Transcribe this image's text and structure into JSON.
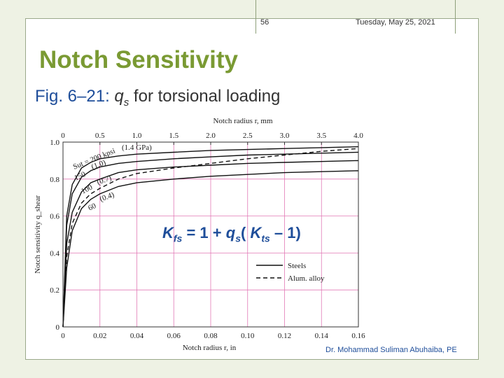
{
  "header": {
    "slide_number": "56",
    "date": "Tuesday, May 25, 2021"
  },
  "title": "Notch Sensitivity",
  "subtitle": {
    "fig": "Fig. 6–21:",
    "q": "q",
    "q_sub": "s",
    "rest": " for torsional loading"
  },
  "formula": {
    "k": "K",
    "k_sub": "fs",
    "eq": " = 1 + ",
    "q": "q",
    "q_sub": "s",
    "open": "( ",
    "k2": "K",
    "k2_sub": "ts",
    "close": " – 1)"
  },
  "author": "Dr. Mohammad Suliman Abuhaiba, PE",
  "chart_data": {
    "type": "line",
    "title": "",
    "xlabel": "Notch radius r, in",
    "x2label": "Notch radius r, mm",
    "ylabel": "Notch sensitivity q_shear",
    "xlim": [
      0,
      0.16
    ],
    "x2lim": [
      0,
      4.0
    ],
    "ylim": [
      0,
      1.0
    ],
    "x_ticks": [
      "0",
      "0.02",
      "0.04",
      "0.06",
      "0.08",
      "0.10",
      "0.12",
      "0.14",
      "0.16"
    ],
    "x2_ticks": [
      "0",
      "0.5",
      "1.0",
      "1.5",
      "2.0",
      "2.5",
      "3.0",
      "3.5",
      "4.0"
    ],
    "y_ticks": [
      "0",
      "0.2",
      "0.4",
      "0.6",
      "0.8",
      "1.0"
    ],
    "grid": true,
    "legend": {
      "position": "bottom-right",
      "entries": [
        {
          "label": "Steels",
          "style": "solid"
        },
        {
          "label": "Alum. alloy",
          "style": "dashed"
        }
      ]
    },
    "curve_labels": [
      "Sut = 200 kpsi",
      "(1.4 GPa)",
      "150",
      "(1.0)",
      "100",
      "(0.7)",
      "60",
      "(0.4)"
    ],
    "series": [
      {
        "style": "solid",
        "x": [
          0,
          0.002,
          0.005,
          0.01,
          0.015,
          0.02,
          0.03,
          0.04,
          0.06,
          0.08,
          0.1,
          0.12,
          0.14,
          0.16
        ],
        "y": [
          0,
          0.6,
          0.77,
          0.86,
          0.89,
          0.91,
          0.925,
          0.935,
          0.945,
          0.955,
          0.96,
          0.965,
          0.97,
          0.975
        ]
      },
      {
        "style": "solid",
        "x": [
          0,
          0.002,
          0.005,
          0.01,
          0.015,
          0.02,
          0.03,
          0.04,
          0.06,
          0.08,
          0.1,
          0.12,
          0.14,
          0.16
        ],
        "y": [
          0,
          0.55,
          0.72,
          0.81,
          0.845,
          0.865,
          0.885,
          0.895,
          0.91,
          0.92,
          0.93,
          0.935,
          0.94,
          0.945
        ]
      },
      {
        "style": "solid",
        "x": [
          0,
          0.002,
          0.005,
          0.01,
          0.015,
          0.02,
          0.03,
          0.04,
          0.06,
          0.08,
          0.1,
          0.12,
          0.14,
          0.16
        ],
        "y": [
          0,
          0.45,
          0.62,
          0.73,
          0.78,
          0.8,
          0.835,
          0.85,
          0.865,
          0.875,
          0.885,
          0.89,
          0.895,
          0.9
        ]
      },
      {
        "style": "solid",
        "x": [
          0,
          0.002,
          0.005,
          0.01,
          0.015,
          0.02,
          0.03,
          0.04,
          0.06,
          0.08,
          0.1,
          0.12,
          0.14,
          0.16
        ],
        "y": [
          0,
          0.32,
          0.52,
          0.64,
          0.69,
          0.72,
          0.76,
          0.78,
          0.8,
          0.815,
          0.825,
          0.835,
          0.84,
          0.845
        ]
      },
      {
        "style": "dashed",
        "x": [
          0,
          0.002,
          0.005,
          0.01,
          0.015,
          0.02,
          0.03,
          0.04,
          0.06,
          0.08,
          0.1,
          0.12,
          0.14,
          0.16
        ],
        "y": [
          0,
          0.38,
          0.56,
          0.67,
          0.72,
          0.75,
          0.8,
          0.83,
          0.86,
          0.885,
          0.91,
          0.93,
          0.95,
          0.965
        ]
      }
    ]
  }
}
